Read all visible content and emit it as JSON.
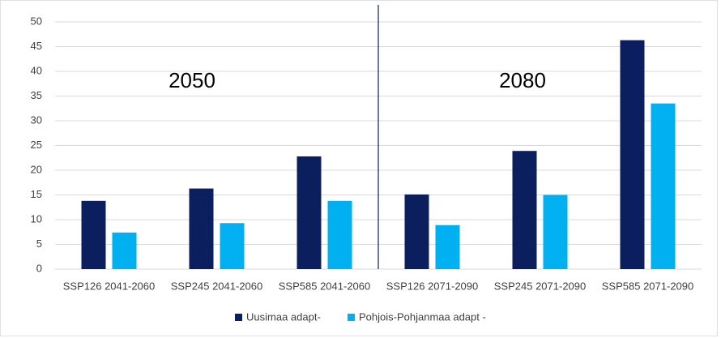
{
  "chart_data": {
    "type": "bar",
    "categories": [
      "SSP126 2041-2060",
      "SSP245 2041-2060",
      "SSP585 2041-2060",
      "SSP126 2071-2090",
      "SSP245 2071-2090",
      "SSP585 2071-2090"
    ],
    "series": [
      {
        "name": "Uusimaa adapt-",
        "color": "#0b1f5e",
        "values": [
          13.8,
          16.3,
          22.8,
          15.1,
          23.9,
          46.3
        ]
      },
      {
        "name": "Pohjois-Pohjanmaa adapt -",
        "color": "#00b0f0",
        "values": [
          7.4,
          9.3,
          13.8,
          8.9,
          15.0,
          33.5
        ]
      }
    ],
    "annotations": [
      "2050",
      "2080"
    ],
    "ylim": [
      0,
      50
    ],
    "yticks": [
      0,
      5,
      10,
      15,
      20,
      25,
      30,
      35,
      40,
      45,
      50
    ],
    "grid": true,
    "legend": "bottom"
  }
}
